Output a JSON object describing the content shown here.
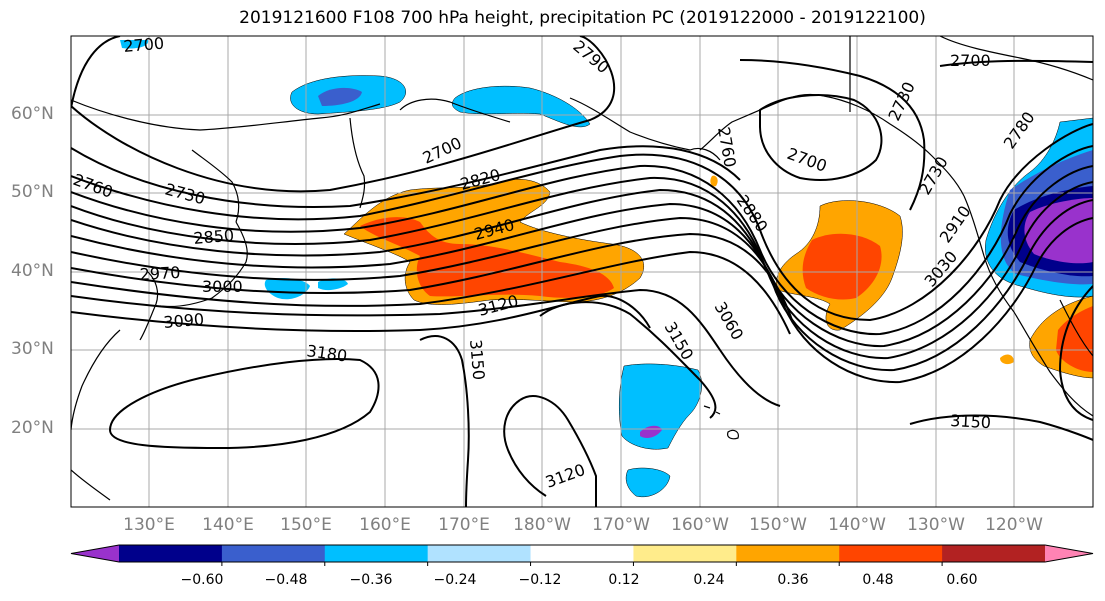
{
  "title": "2019121600 F108 700 hPa height, precipitation PC (2019122000 - 2019122100)",
  "lat_labels": [
    "60°N",
    "50°N",
    "40°N",
    "30°N",
    "20°N"
  ],
  "lon_labels": [
    "130°E",
    "140°E",
    "150°E",
    "160°E",
    "170°E",
    "180°W",
    "170°W",
    "160°W",
    "150°W",
    "140°W",
    "130°W",
    "120°W"
  ],
  "contour_labels": [
    "2700",
    "2790",
    "2700",
    "2730",
    "2760",
    "2730",
    "2700",
    "2820",
    "2760",
    "2700",
    "2730",
    "2780",
    "2850",
    "2940",
    "2880",
    "2910",
    "2970",
    "3000",
    "3030",
    "3090",
    "3120",
    "3060",
    "3180",
    "3150",
    "3150",
    "3150",
    "3120"
  ],
  "colorbar": {
    "tick_labels": [
      "−0.60",
      "−0.48",
      "−0.36",
      "−0.24",
      "−0.12",
      "0.12",
      "0.24",
      "0.36",
      "0.48",
      "0.60"
    ],
    "colors": [
      "#9932cc",
      "#00008b",
      "#3a5fcd",
      "#00bfff",
      "#b0e2ff",
      "#ffffff",
      "#ffec8b",
      "#ffa500",
      "#ff4500",
      "#b22222",
      "#ff83b4"
    ]
  },
  "fill_colors": {
    "deep_purple": "#9932cc",
    "navy": "#00008b",
    "royal_blue": "#3a5fcd",
    "sky_blue": "#00bfff",
    "light_blue": "#b0e2ff",
    "light_yellow": "#ffec8b",
    "orange": "#ffa500",
    "red_orange": "#ff4500"
  }
}
